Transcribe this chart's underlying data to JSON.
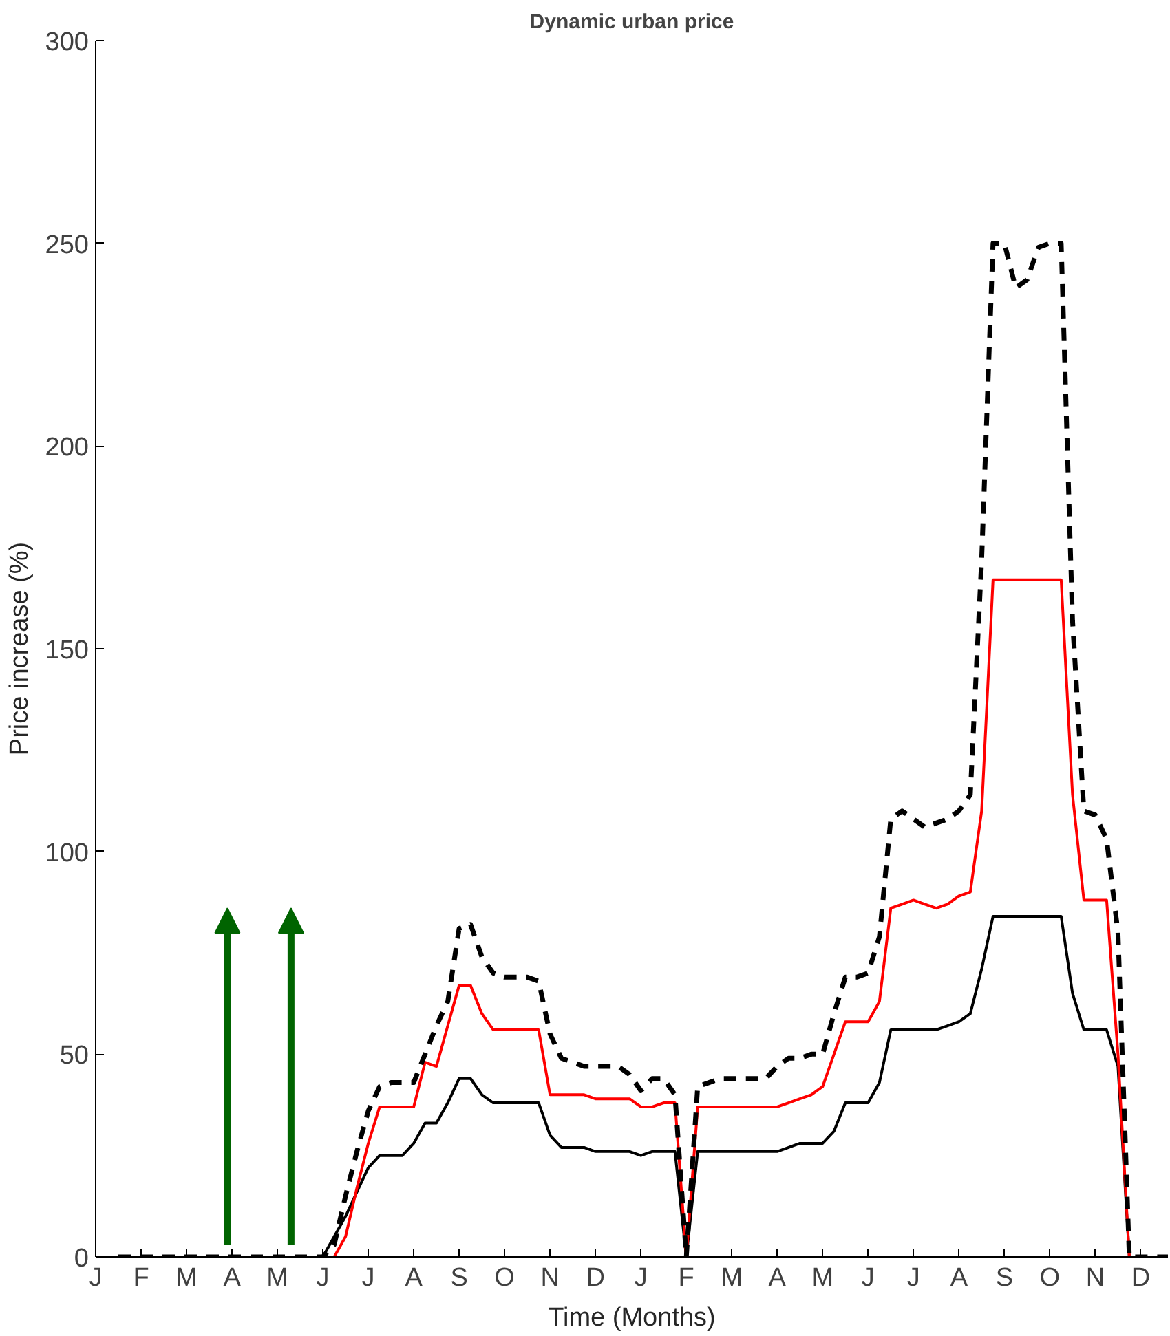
{
  "chart_data": {
    "type": "line",
    "title": "Dynamic urban price",
    "xlabel": "Time (Months)",
    "ylabel": "Price increase (%)",
    "categories": [
      "J",
      null,
      null,
      null,
      "F",
      null,
      null,
      null,
      "M",
      null,
      null,
      null,
      "A",
      null,
      null,
      null,
      "M",
      null,
      null,
      null,
      "J",
      null,
      null,
      null,
      "J",
      null,
      null,
      null,
      "A",
      null,
      null,
      null,
      "S",
      null,
      null,
      null,
      "O",
      null,
      null,
      null,
      "N",
      null,
      null,
      null,
      "D",
      null,
      null,
      null,
      "J",
      null,
      null,
      null,
      "F",
      null,
      null,
      null,
      "M",
      null,
      null,
      null,
      "A",
      null,
      null,
      null,
      "M",
      null,
      null,
      null,
      "J",
      null,
      null,
      null,
      "J",
      null,
      null,
      null,
      "A",
      null,
      null,
      null,
      "S",
      null,
      null,
      null,
      "O",
      null,
      null,
      null,
      "N",
      null,
      null,
      null,
      "D",
      null,
      null,
      null
    ],
    "ylim": [
      0,
      300
    ],
    "yticks": [
      0,
      50,
      100,
      150,
      200,
      250,
      300
    ],
    "grid": false,
    "marker": "none",
    "series": [
      {
        "color": "#000000",
        "line_style": "dashed",
        "values": [
          null,
          null,
          0,
          0,
          0,
          0,
          0,
          0,
          0,
          0,
          0,
          0,
          0,
          0,
          0,
          0,
          0,
          0,
          0,
          0,
          0,
          3,
          15,
          26,
          36,
          42,
          43,
          43,
          43,
          50,
          57,
          63,
          81,
          82,
          74,
          70,
          69,
          69,
          69,
          68,
          55,
          49,
          48,
          47,
          47,
          47,
          47,
          45,
          41,
          44,
          44,
          40,
          0,
          42,
          43,
          44,
          44,
          44,
          44,
          44,
          47,
          49,
          49,
          50,
          50,
          60,
          69,
          69,
          70,
          79,
          108,
          110,
          108,
          106,
          107,
          108,
          110,
          114,
          172,
          250,
          250,
          239,
          241,
          249,
          250,
          250,
          157,
          110,
          109,
          103,
          80,
          0,
          0,
          0,
          0,
          0
        ]
      },
      {
        "color": "#ff0000",
        "line_style": "solid",
        "values": [
          null,
          null,
          0,
          0,
          0,
          0,
          0,
          0,
          0,
          0,
          0,
          0,
          0,
          0,
          0,
          0,
          0,
          0,
          0,
          0,
          0,
          0,
          5,
          17,
          28,
          37,
          37,
          37,
          37,
          48,
          47,
          57,
          67,
          67,
          60,
          56,
          56,
          56,
          56,
          56,
          40,
          40,
          40,
          40,
          39,
          39,
          39,
          39,
          37,
          37,
          38,
          38,
          0,
          37,
          37,
          37,
          37,
          37,
          37,
          37,
          37,
          38,
          39,
          40,
          42,
          50,
          58,
          58,
          58,
          63,
          86,
          87,
          88,
          87,
          86,
          87,
          89,
          90,
          110,
          167,
          167,
          167,
          167,
          167,
          167,
          167,
          114,
          88,
          88,
          88,
          50,
          0,
          0,
          0,
          0,
          0
        ]
      },
      {
        "color": "#000000",
        "line_style": "solid",
        "values": [
          null,
          null,
          null,
          null,
          null,
          null,
          null,
          null,
          null,
          null,
          null,
          null,
          null,
          null,
          null,
          null,
          null,
          null,
          null,
          null,
          0,
          5,
          10,
          16,
          22,
          25,
          25,
          25,
          28,
          33,
          33,
          38,
          44,
          44,
          40,
          38,
          38,
          38,
          38,
          38,
          30,
          27,
          27,
          27,
          26,
          26,
          26,
          26,
          25,
          26,
          26,
          26,
          0,
          26,
          26,
          26,
          26,
          26,
          26,
          26,
          26,
          27,
          28,
          28,
          28,
          31,
          38,
          38,
          38,
          43,
          56,
          56,
          56,
          56,
          56,
          57,
          58,
          60,
          71,
          84,
          84,
          84,
          84,
          84,
          84,
          84,
          65,
          56,
          56,
          56,
          47,
          0,
          null,
          null,
          null,
          null
        ]
      }
    ]
  }
}
